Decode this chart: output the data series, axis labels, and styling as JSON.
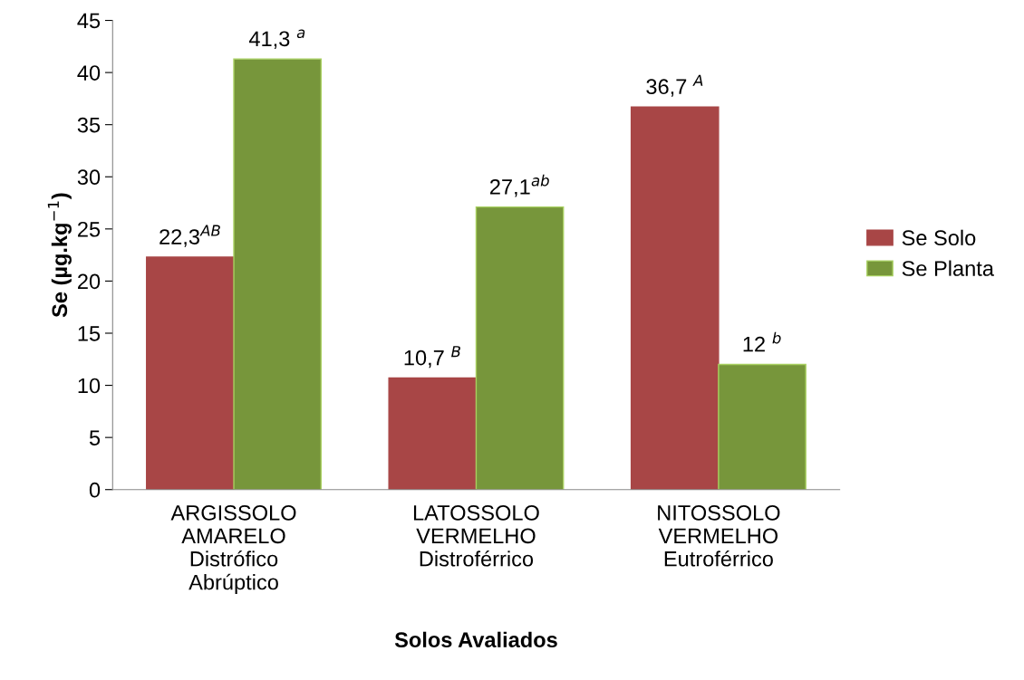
{
  "chart_data": {
    "type": "bar",
    "xlabel": "Solos Avaliados",
    "ylabel": "Se (µg.kg$^{−1}$)",
    "categories": [
      "ARGISSOLO\nAMARELO\nDistrófico\nAbrúptico",
      "LATOSSOLO\nVERMELHO\nDistroférrico",
      "NITOSSOLO\nVERMELHO\nEutroférrico"
    ],
    "series": [
      {
        "name": "Se Solo",
        "color": "#a84646",
        "values": [
          22.3,
          10.7,
          36.7
        ],
        "value_labels": [
          "22,3$^{AB}$",
          "10,7 $^{B}$",
          "36,7 $^{A}$"
        ]
      },
      {
        "name": "Se Planta",
        "color": "#77963b",
        "values": [
          41.3,
          27.1,
          12
        ],
        "value_labels": [
          "41,3 $^{a}$",
          "27,1$^{ab}$",
          "12 $^{b}$"
        ]
      }
    ],
    "ylim": [
      0,
      45
    ],
    "yticks": [
      0,
      5,
      10,
      15,
      20,
      25,
      30,
      35,
      40,
      45
    ],
    "grid": false,
    "legend": "right"
  }
}
